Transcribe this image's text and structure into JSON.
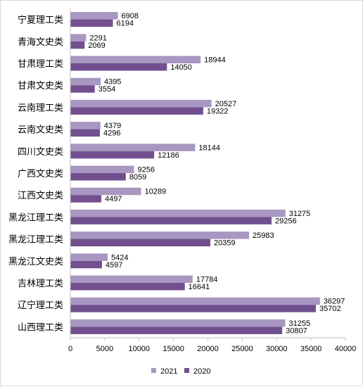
{
  "chart_data": {
    "type": "bar",
    "orientation": "horizontal",
    "categories": [
      "宁夏理工类",
      "青海文史类",
      "甘肃理工类",
      "甘肃文史类",
      "云南理工类",
      "云南文史类",
      "四川文史类",
      "广西文史类",
      "江西文史类",
      "黑龙江理工类",
      "黑龙江理工类",
      "黑龙江文史类",
      "吉林理工类",
      "辽宁理工类",
      "山西理工类"
    ],
    "series": [
      {
        "name": "2021",
        "color": "#a797c1",
        "values": [
          6908,
          2291,
          18944,
          4395,
          20527,
          4379,
          18144,
          9256,
          10289,
          31275,
          25983,
          5424,
          17784,
          36297,
          31255
        ]
      },
      {
        "name": "2020",
        "color": "#72508f",
        "values": [
          6194,
          2069,
          14050,
          3554,
          19322,
          4296,
          12186,
          8059,
          4497,
          29256,
          20359,
          4597,
          16641,
          35702,
          30807
        ]
      }
    ],
    "xlim": [
      0,
      40000
    ],
    "xticks": [
      "0",
      "5000",
      "10000",
      "15000",
      "20000",
      "25000",
      "30000",
      "35000",
      "40000"
    ],
    "grid": false,
    "legend_position": "bottom"
  }
}
